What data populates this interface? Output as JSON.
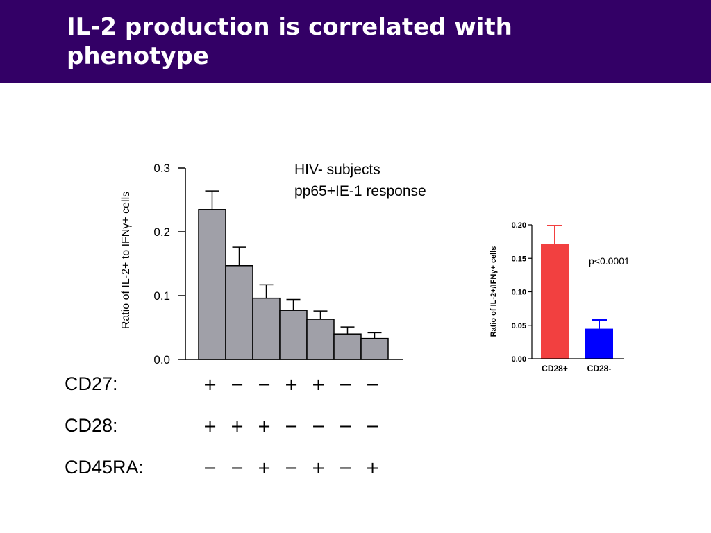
{
  "slide": {
    "title_line1": "IL-2 production is correlated with",
    "title_line2": "phenotype",
    "colors": {
      "title_bar": "#330066",
      "title_text": "#ffffff"
    }
  },
  "chart_data": [
    {
      "type": "bar",
      "annotation_line1": "HIV- subjects",
      "annotation_line2": "pp65+IE-1 response",
      "ylabel": "Ratio of IL-2+ to IFNγ+ cells",
      "ylim": [
        0,
        0.3
      ],
      "yticks": [
        "0.0",
        "0.1",
        "0.2",
        "0.3"
      ],
      "values": [
        0.235,
        0.147,
        0.096,
        0.077,
        0.063,
        0.04,
        0.033
      ],
      "errors": [
        0.029,
        0.029,
        0.021,
        0.017,
        0.013,
        0.011,
        0.009
      ],
      "bar_color": "#a0a0a8",
      "phenotype_rows": [
        {
          "label": "CD27:",
          "signs": [
            "+",
            "−",
            "−",
            "+",
            "+",
            "−",
            "−"
          ]
        },
        {
          "label": "CD28:",
          "signs": [
            "+",
            "+",
            "+",
            "−",
            "−",
            "−",
            "−"
          ]
        },
        {
          "label": "CD45RA:",
          "signs": [
            "−",
            "−",
            "+",
            "−",
            "+",
            "−",
            "+"
          ]
        }
      ]
    },
    {
      "type": "bar",
      "categories": [
        "CD28+",
        "CD28-"
      ],
      "values": [
        0.172,
        0.045
      ],
      "errors": [
        0.027,
        0.013
      ],
      "colors": [
        "#f24040",
        "#0000ff"
      ],
      "ylabel": "Ratio of IL-2+/IFNγ+ cells",
      "ylim": [
        0,
        0.2
      ],
      "yticks": [
        "0.00",
        "0.05",
        "0.10",
        "0.15",
        "0.20"
      ],
      "annotation": "p<0.0001"
    }
  ]
}
